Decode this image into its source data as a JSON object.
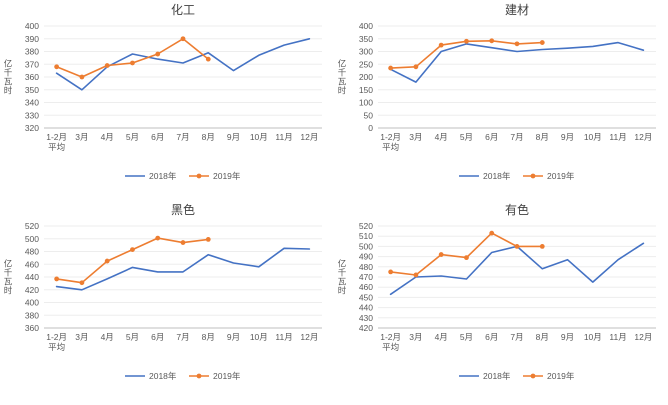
{
  "page": {
    "background": "#ffffff"
  },
  "legend": {
    "series_2018_label": "2018年",
    "series_2019_label": "2019年"
  },
  "colors": {
    "series_2018": "#4472c4",
    "series_2019": "#ed7d31",
    "axis_line": "#bfbfbf",
    "gridline": "#ededed",
    "tick_text": "#595959",
    "title_text": "#404040"
  },
  "chart_data": [
    {
      "type": "line",
      "title": "化工",
      "ylabel": "亿千瓦时",
      "ylim": [
        320,
        400
      ],
      "ytick_step": 10,
      "grid": true,
      "legend_position": "bottom",
      "categories": [
        [
          "1-2月",
          "平均"
        ],
        "3月",
        "4月",
        "5月",
        "6月",
        "7月",
        "8月",
        "9月",
        "10月",
        "11月",
        "12月"
      ],
      "series": [
        {
          "name": "2018年",
          "color": "#4472c4",
          "marker": false,
          "values": [
            363,
            350,
            368,
            378,
            374,
            371,
            379,
            365,
            377,
            385,
            390
          ]
        },
        {
          "name": "2019年",
          "color": "#ed7d31",
          "marker": true,
          "values": [
            368,
            360,
            369,
            371,
            378,
            390,
            374,
            null,
            null,
            null,
            null
          ]
        }
      ]
    },
    {
      "type": "line",
      "title": "建材",
      "ylabel": "亿千瓦时",
      "ylim": [
        0,
        400
      ],
      "ytick_step": 50,
      "grid": true,
      "legend_position": "bottom",
      "categories": [
        [
          "1-2月",
          "平均"
        ],
        "3月",
        "4月",
        "5月",
        "6月",
        "7月",
        "8月",
        "9月",
        "10月",
        "11月",
        "12月"
      ],
      "series": [
        {
          "name": "2018年",
          "color": "#4472c4",
          "marker": false,
          "values": [
            230,
            180,
            300,
            330,
            315,
            300,
            308,
            313,
            320,
            335,
            305
          ]
        },
        {
          "name": "2019年",
          "color": "#ed7d31",
          "marker": true,
          "values": [
            235,
            240,
            325,
            340,
            342,
            330,
            335,
            null,
            null,
            null,
            null
          ]
        }
      ]
    },
    {
      "type": "line",
      "title": "黑色",
      "ylabel": "亿千瓦时",
      "ylim": [
        360,
        520
      ],
      "ytick_step": 20,
      "grid": true,
      "legend_position": "bottom",
      "categories": [
        [
          "1-2月",
          "平均"
        ],
        "3月",
        "4月",
        "5月",
        "6月",
        "7月",
        "8月",
        "9月",
        "10月",
        "11月",
        "12月"
      ],
      "series": [
        {
          "name": "2018年",
          "color": "#4472c4",
          "marker": false,
          "values": [
            425,
            420,
            437,
            455,
            448,
            448,
            475,
            462,
            456,
            485,
            484
          ]
        },
        {
          "name": "2019年",
          "color": "#ed7d31",
          "marker": true,
          "values": [
            437,
            431,
            465,
            483,
            501,
            494,
            499,
            null,
            null,
            null,
            null
          ]
        }
      ]
    },
    {
      "type": "line",
      "title": "有色",
      "ylabel": "亿千瓦时",
      "ylim": [
        420,
        520
      ],
      "ytick_step": 10,
      "grid": true,
      "legend_position": "bottom",
      "categories": [
        [
          "1-2月",
          "平均"
        ],
        "3月",
        "4月",
        "5月",
        "6月",
        "7月",
        "8月",
        "9月",
        "10月",
        "11月",
        "12月"
      ],
      "series": [
        {
          "name": "2018年",
          "color": "#4472c4",
          "marker": false,
          "values": [
            453,
            470,
            471,
            468,
            494,
            500,
            478,
            487,
            465,
            487,
            503
          ]
        },
        {
          "name": "2019年",
          "color": "#ed7d31",
          "marker": true,
          "values": [
            475,
            472,
            492,
            489,
            513,
            500,
            500,
            null,
            null,
            null,
            null
          ]
        }
      ]
    }
  ]
}
